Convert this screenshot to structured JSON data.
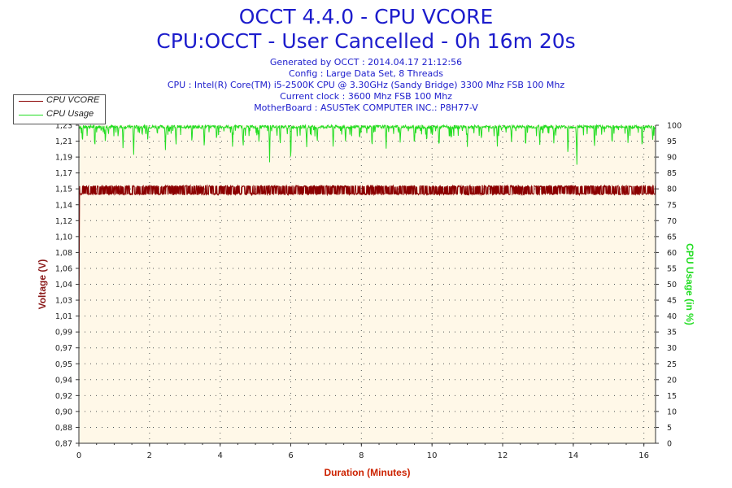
{
  "header": {
    "title": "OCCT 4.4.0 - CPU VCORE",
    "subtitle": "CPU:OCCT - User Cancelled - 0h 16m 20s",
    "info_lines": [
      "Generated by OCCT : 2014.04.17 21:12:56",
      "Config : Large Data Set, 8 Threads",
      "CPU : Intel(R) Core(TM) i5-2500K CPU @ 3.30GHz (Sandy Bridge) 3300 Mhz FSB 100 Mhz",
      "Current clock : 3600 Mhz FSB 100 Mhz",
      "MotherBoard : ASUSTeK COMPUTER INC.: P8H77-V"
    ]
  },
  "legend": {
    "vcore": "CPU VCORE",
    "usage": "CPU Usage"
  },
  "colors": {
    "vcore": "#8b0000",
    "usage": "#22dd22",
    "plot_bg": "#fff8e8",
    "title": "#1c1ccc",
    "ylabel_left": "#8b1a1a",
    "ylabel_right": "#22dd22",
    "xlabel": "#cc2200"
  },
  "chart_data": {
    "type": "line",
    "title": "OCCT 4.4.0 - CPU VCORE",
    "xlabel": "Duration (Minutes)",
    "ylabel": "Voltage (V)",
    "ylabel_right": "CPU Usage (in %)",
    "xlim": [
      0,
      16.33
    ],
    "ylim": [
      0.87,
      1.23
    ],
    "ylim_right": [
      0,
      100
    ],
    "x_ticks": [
      "0",
      "2",
      "4",
      "6",
      "8",
      "10",
      "12",
      "14",
      "16"
    ],
    "y_ticks": [
      "0,87",
      "0,88",
      "0,90",
      "0,92",
      "0,94",
      "0,95",
      "0,97",
      "0,99",
      "1,01",
      "1,03",
      "1,04",
      "1,06",
      "1,08",
      "1,10",
      "1,12",
      "1,14",
      "1,15",
      "1,17",
      "1,19",
      "1,21",
      "1,23"
    ],
    "y_ticks_right": [
      "0",
      "5",
      "10",
      "15",
      "20",
      "25",
      "30",
      "35",
      "40",
      "45",
      "50",
      "55",
      "60",
      "65",
      "70",
      "75",
      "80",
      "85",
      "90",
      "95",
      "100"
    ],
    "grid": true,
    "legend_position": "top-left",
    "series": [
      {
        "name": "CPU VCORE",
        "axis": "left",
        "baseline": 1.152,
        "peak": 1.161,
        "description_values": [
          1.152,
          1.161
        ]
      },
      {
        "name": "CPU Usage",
        "axis": "right",
        "baseline": 99.5,
        "dips": [
          [
            0.1,
            94
          ],
          [
            0.45,
            92
          ],
          [
            0.75,
            94
          ],
          [
            1.25,
            92
          ],
          [
            1.55,
            90
          ],
          [
            1.95,
            95
          ],
          [
            2.45,
            92
          ],
          [
            2.75,
            93
          ],
          [
            3.2,
            94
          ],
          [
            3.55,
            92
          ],
          [
            3.9,
            95
          ],
          [
            4.35,
            93
          ],
          [
            4.65,
            92
          ],
          [
            5.1,
            94
          ],
          [
            5.4,
            88
          ],
          [
            5.7,
            93
          ],
          [
            6.0,
            87
          ],
          [
            6.45,
            93
          ],
          [
            6.75,
            94
          ],
          [
            7.2,
            92
          ],
          [
            7.55,
            94
          ],
          [
            7.95,
            95
          ],
          [
            8.3,
            92
          ],
          [
            8.7,
            92
          ],
          [
            9.1,
            94
          ],
          [
            9.5,
            93
          ],
          [
            9.85,
            94
          ],
          [
            10.2,
            92
          ],
          [
            10.55,
            95
          ],
          [
            11.0,
            93
          ],
          [
            11.4,
            95
          ],
          [
            11.85,
            93
          ],
          [
            12.25,
            94
          ],
          [
            12.65,
            92
          ],
          [
            13.05,
            93
          ],
          [
            13.45,
            94
          ],
          [
            13.85,
            89
          ],
          [
            14.1,
            86
          ],
          [
            14.6,
            92
          ],
          [
            15.1,
            93
          ],
          [
            15.55,
            94
          ],
          [
            15.95,
            92
          ],
          [
            16.25,
            95
          ]
        ]
      }
    ]
  }
}
